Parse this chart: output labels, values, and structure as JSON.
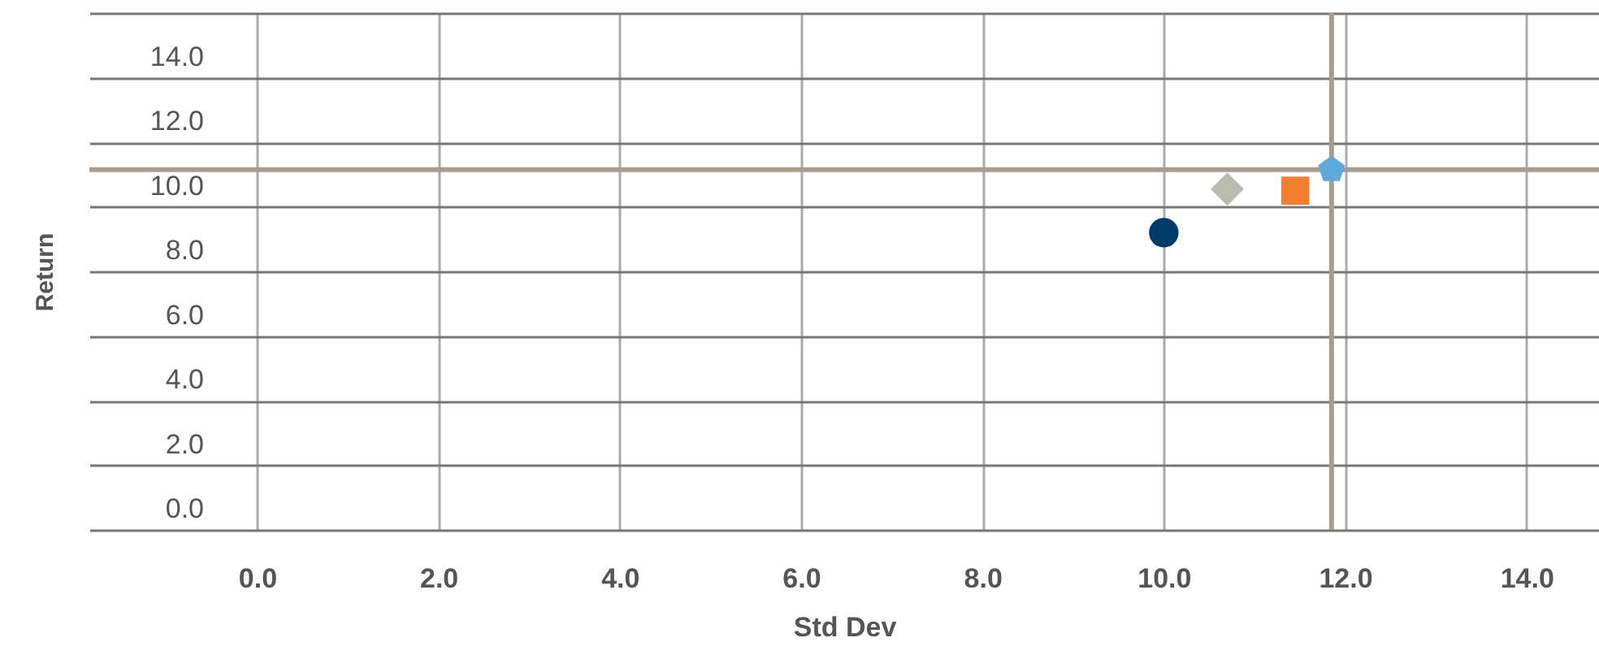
{
  "chart_data": {
    "type": "scatter",
    "xlabel": "Std Dev",
    "ylabel": "Return",
    "xlim": [
      -1.85,
      14.8
    ],
    "ylim": [
      0,
      16
    ],
    "xticks": [
      {
        "value": 0,
        "label": "0.0"
      },
      {
        "value": 2,
        "label": "2.0"
      },
      {
        "value": 4,
        "label": "4.0"
      },
      {
        "value": 6,
        "label": "6.0"
      },
      {
        "value": 8,
        "label": "8.0"
      },
      {
        "value": 10,
        "label": "10.0"
      },
      {
        "value": 12,
        "label": "12.0"
      },
      {
        "value": 14,
        "label": "14.0"
      }
    ],
    "yticks": [
      {
        "value": 0,
        "label": "0.0"
      },
      {
        "value": 2,
        "label": "2.0"
      },
      {
        "value": 4,
        "label": "4.0"
      },
      {
        "value": 6,
        "label": "6.0"
      },
      {
        "value": 8,
        "label": "8.0"
      },
      {
        "value": 10,
        "label": "10.0"
      },
      {
        "value": 12,
        "label": "12.0"
      },
      {
        "value": 14,
        "label": "14.0"
      },
      {
        "value": 16,
        "label": null
      }
    ],
    "grid": true,
    "series": [
      {
        "color": "#003a6a",
        "marker": "circle",
        "x": [
          10.0
        ],
        "values": [
          9.2
        ]
      },
      {
        "color": "#bbbcb0",
        "marker": "diamond",
        "x": [
          10.7
        ],
        "values": [
          10.55
        ]
      },
      {
        "color": "#f47f30",
        "marker": "square",
        "x": [
          11.45
        ],
        "values": [
          10.5
        ]
      },
      {
        "color": "#5fa8dc",
        "x": [
          11.85
        ],
        "values": [
          11.15
        ]
      }
    ],
    "ref_lines": [
      {
        "axis": "y",
        "value": 11.15,
        "color": "#a89c90"
      },
      {
        "axis": "x",
        "value": 11.85,
        "color": "#a89c90"
      }
    ]
  }
}
